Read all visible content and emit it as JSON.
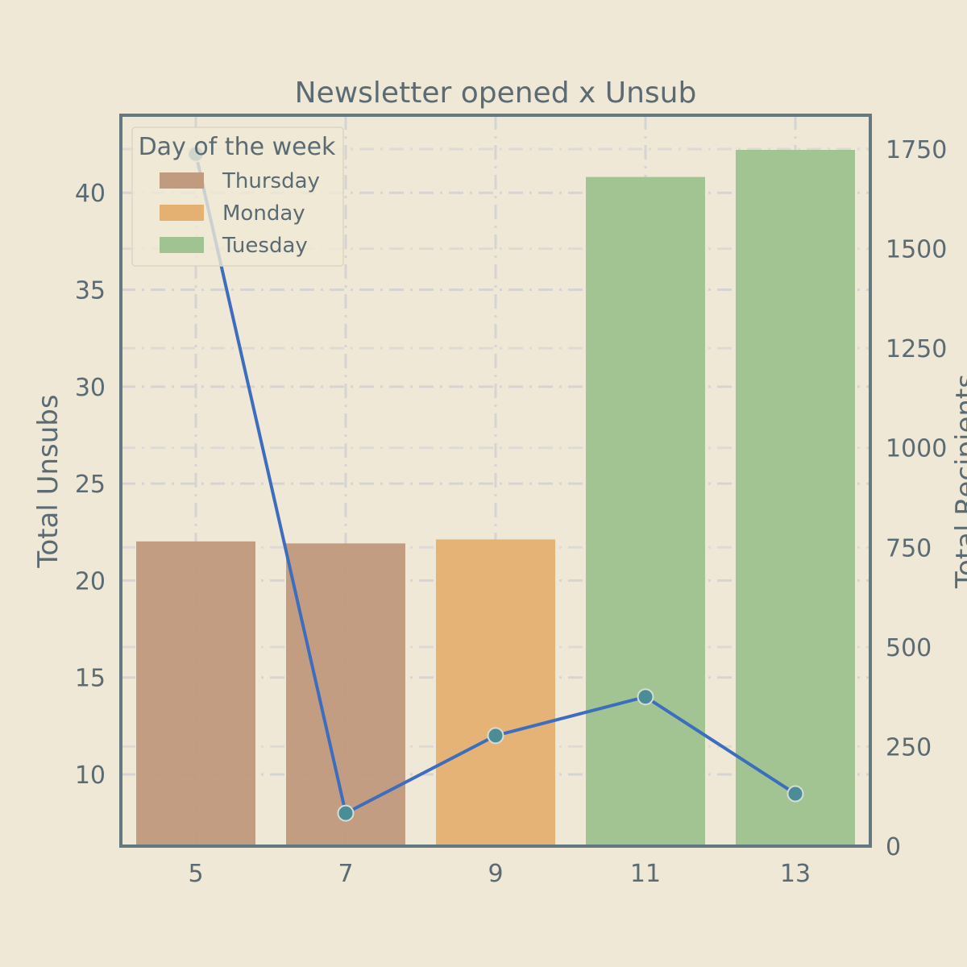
{
  "chart_data": {
    "type": "bar",
    "title": "Newsletter opened x Unsub",
    "xlabel": "",
    "ylabel": "Total Unsubs",
    "y2label": "Total Recipients",
    "x": [
      5,
      7,
      9,
      11,
      13
    ],
    "x_ticks": [
      "5",
      "7",
      "9",
      "11",
      "13"
    ],
    "ylim": [
      6.3,
      44
    ],
    "y_ticks": [
      10,
      15,
      20,
      25,
      30,
      35,
      40
    ],
    "y2lim": [
      0,
      1835
    ],
    "y2_ticks": [
      0,
      250,
      500,
      750,
      1000,
      1250,
      1500,
      1750
    ],
    "grid": true,
    "legend": {
      "title": "Day of the week",
      "placement": "top-left",
      "entries": [
        {
          "label": "Thursday",
          "color": "#c19b80"
        },
        {
          "label": "Monday",
          "color": "#e5b173"
        },
        {
          "label": "Tuesday",
          "color": "#a0c391"
        }
      ]
    },
    "series": [
      {
        "kind": "bar",
        "axis": "right",
        "values": [
          765,
          760,
          770,
          1680,
          1748
        ],
        "day": [
          "Thursday",
          "Thursday",
          "Monday",
          "Tuesday",
          "Tuesday"
        ]
      },
      {
        "kind": "line",
        "axis": "left",
        "values": [
          42,
          8,
          12,
          14,
          9
        ]
      }
    ],
    "colors": {
      "background": "#f0e8d6",
      "frame": "#66787f",
      "text": "#5b6b73",
      "grid": "#d6d4d3",
      "line": "#3d6ebe",
      "marker_fill": "#4a8d96",
      "marker_edge": "#d8dcd6",
      "Thursday": "#c19b80",
      "Monday": "#e5b173",
      "Tuesday": "#a0c391"
    }
  }
}
